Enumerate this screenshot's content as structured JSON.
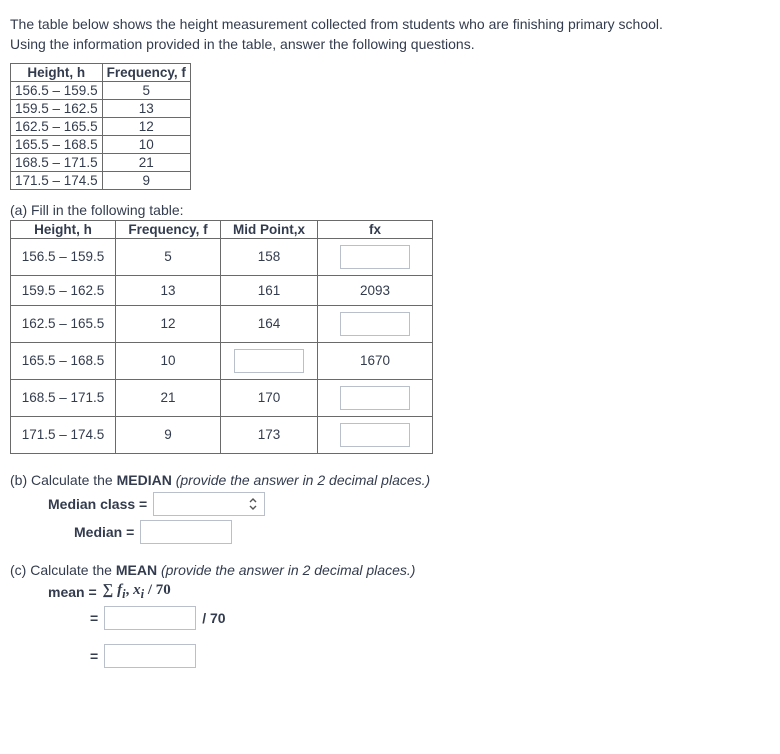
{
  "intro": {
    "line1": "The table below shows the height measurement collected from students who are finishing primary school.",
    "line2": "Using the information provided in the table, answer the following questions."
  },
  "table1": {
    "headers": {
      "height": "Height, h",
      "freq": "Frequency, f"
    },
    "rows": [
      {
        "h": "156.5 – 159.5",
        "f": "5"
      },
      {
        "h": "159.5 – 162.5",
        "f": "13"
      },
      {
        "h": "162.5 – 165.5",
        "f": "12"
      },
      {
        "h": "165.5 – 168.5",
        "f": "10"
      },
      {
        "h": "168.5 – 171.5",
        "f": "21"
      },
      {
        "h": "171.5 – 174.5",
        "f": "9"
      }
    ]
  },
  "partA": {
    "label": "(a) Fill in the following table:",
    "headers": {
      "height": "Height, h",
      "freq": "Frequency, f",
      "mid": "Mid Point,x",
      "fx": "fx"
    },
    "rows": [
      {
        "h": "156.5 – 159.5",
        "f": "5",
        "mid": "158",
        "fx": "",
        "mid_input": false,
        "fx_input": true
      },
      {
        "h": "159.5 – 162.5",
        "f": "13",
        "mid": "161",
        "fx": "2093",
        "mid_input": false,
        "fx_input": false
      },
      {
        "h": "162.5 – 165.5",
        "f": "12",
        "mid": "164",
        "fx": "",
        "mid_input": false,
        "fx_input": true
      },
      {
        "h": "165.5 – 168.5",
        "f": "10",
        "mid": "",
        "fx": "1670",
        "mid_input": true,
        "fx_input": false
      },
      {
        "h": "168.5 – 171.5",
        "f": "21",
        "mid": "170",
        "fx": "",
        "mid_input": false,
        "fx_input": true
      },
      {
        "h": "171.5 – 174.5",
        "f": "9",
        "mid": "173",
        "fx": "",
        "mid_input": false,
        "fx_input": true
      }
    ]
  },
  "partB": {
    "prompt_prefix": "(b) Calculate the ",
    "prompt_word": "MEDIAN",
    "prompt_suffix": " (provide the answer in 2 decimal places.)",
    "median_class_label": "Median class =",
    "median_label": "Median ="
  },
  "partC": {
    "prompt_prefix": "(c) Calculate the ",
    "prompt_word": "MEAN",
    "prompt_suffix": " (provide the answer in 2 decimal places.)",
    "mean_label": "mean =",
    "formula_right": " / 70",
    "eq": "=",
    "div70": "/ 70"
  },
  "colors": {
    "text": "#333c4e",
    "border_table": "#6a6a6a",
    "border_input": "#b9c0cc"
  }
}
